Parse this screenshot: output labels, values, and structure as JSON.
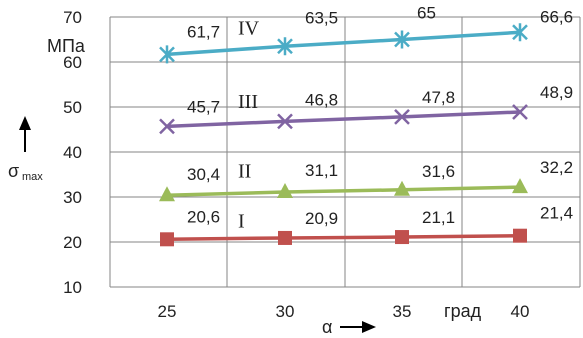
{
  "chart_data": {
    "type": "line",
    "x": [
      25,
      30,
      35,
      40
    ],
    "x_tick_labels": [
      "25",
      "30",
      "35",
      "40"
    ],
    "x_unit": "град",
    "xlabel": "α",
    "y_unit": "МПа",
    "ylabel_symbol": "σ",
    "ylabel_subscript": "max",
    "ylim": [
      10,
      70
    ],
    "y_ticks": [
      10,
      20,
      30,
      40,
      50,
      60,
      70
    ],
    "grid": true,
    "series": [
      {
        "name": "I",
        "color": "#c0504d",
        "marker": "square",
        "values": [
          20.6,
          20.9,
          21.1,
          21.4
        ],
        "labels": [
          "20,6",
          "20,9",
          "21,1",
          "21,4"
        ]
      },
      {
        "name": "II",
        "color": "#9bbb59",
        "marker": "triangle",
        "values": [
          30.4,
          31.1,
          31.6,
          32.2
        ],
        "labels": [
          "30,4",
          "31,1",
          "31,6",
          "32,2"
        ]
      },
      {
        "name": "III",
        "color": "#8064a2",
        "marker": "x",
        "values": [
          45.7,
          46.8,
          47.8,
          48.9
        ],
        "labels": [
          "45,7",
          "46,8",
          "47,8",
          "48,9"
        ]
      },
      {
        "name": "IV",
        "color": "#4bacc6",
        "marker": "star",
        "values": [
          61.7,
          63.5,
          65,
          66.6
        ],
        "labels": [
          "61,7",
          "63,5",
          "65",
          "66,6"
        ]
      }
    ]
  }
}
